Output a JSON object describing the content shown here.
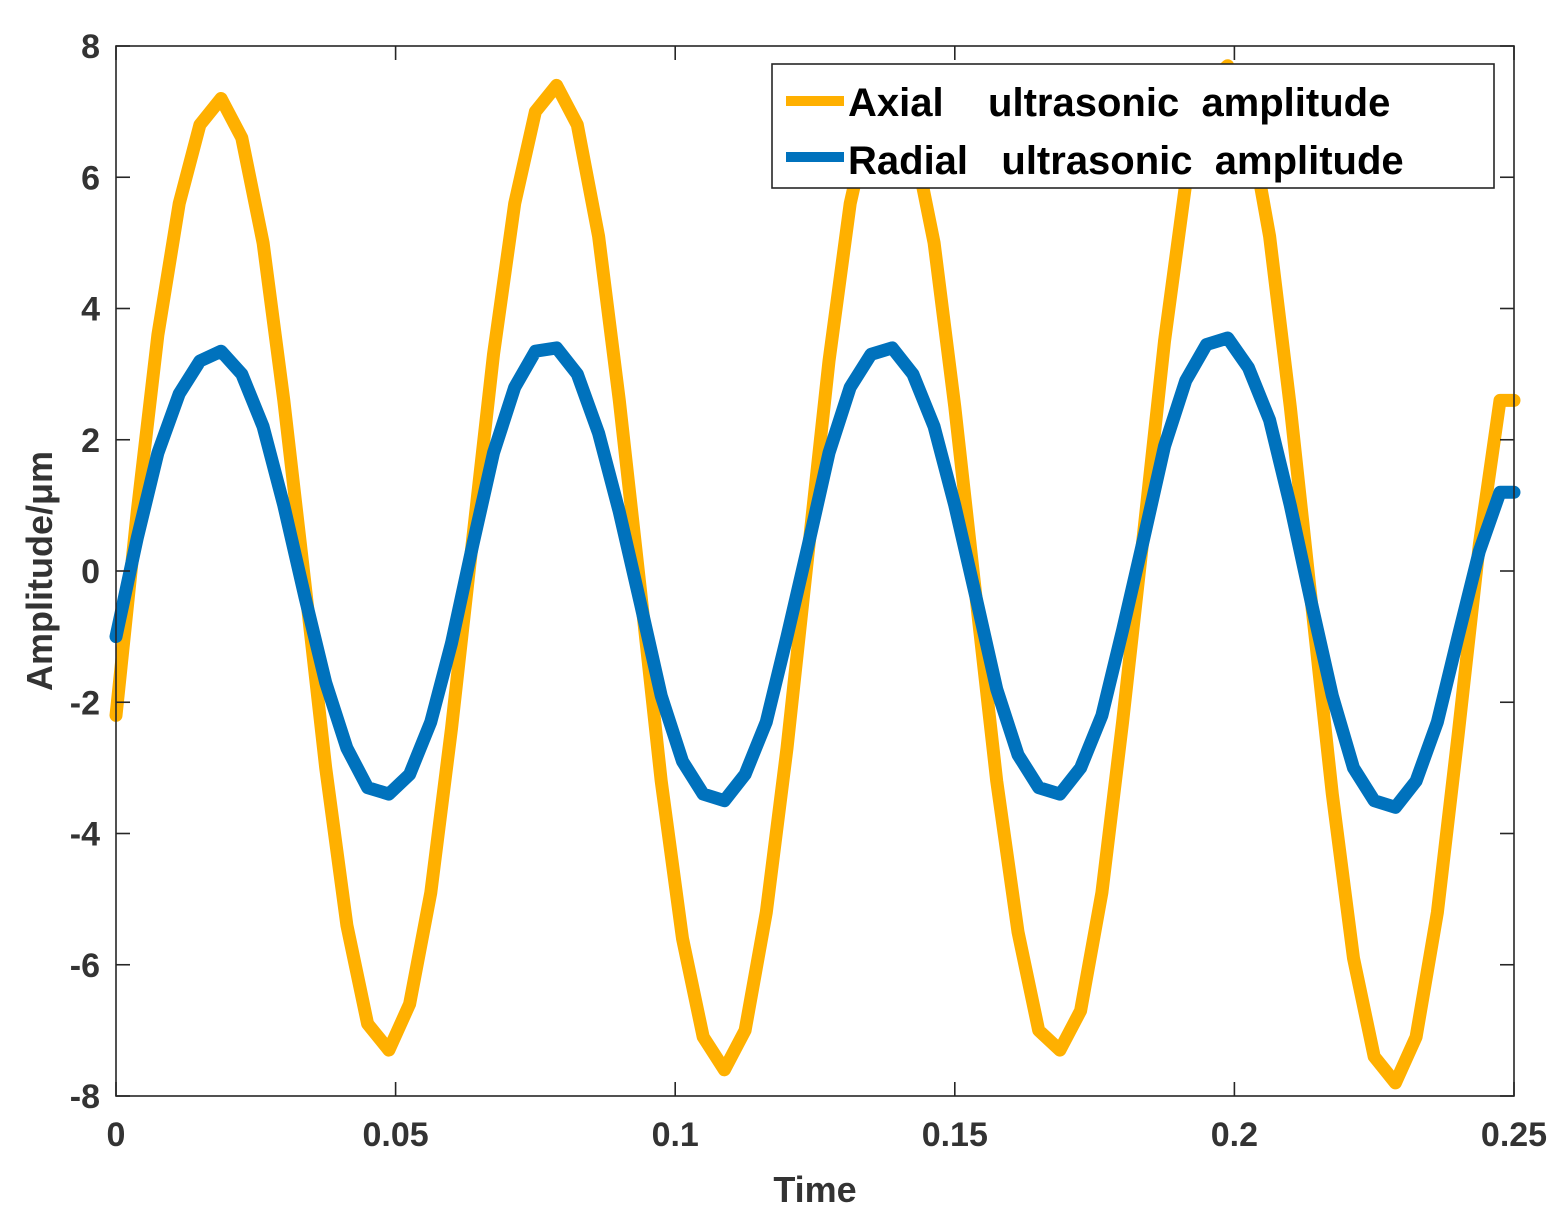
{
  "chart_data": {
    "type": "line",
    "title": "",
    "xlabel": "Time",
    "ylabel": "Amplitude/μm",
    "xlim": [
      0,
      0.25
    ],
    "ylim": [
      -8,
      8
    ],
    "xticks": [
      0,
      0.05,
      0.1,
      0.15,
      0.2,
      0.25
    ],
    "xtick_labels": [
      "0",
      "0.05",
      "0.1",
      "0.15",
      "0.2",
      "0.25"
    ],
    "yticks": [
      -8,
      -6,
      -4,
      -2,
      0,
      2,
      4,
      6,
      8
    ],
    "ytick_labels": [
      "-8",
      "-6",
      "-4",
      "-2",
      "0",
      "2",
      "4",
      "6",
      "8"
    ],
    "grid": false,
    "legend_position": "top-right",
    "series": [
      {
        "name": "Axial    ultrasonic  amplitude",
        "color": "#FFB000",
        "x": [
          0,
          0.0038,
          0.0075,
          0.0113,
          0.015,
          0.0188,
          0.0225,
          0.0263,
          0.03,
          0.0338,
          0.0375,
          0.0413,
          0.045,
          0.0488,
          0.0525,
          0.0563,
          0.06,
          0.0638,
          0.0675,
          0.0713,
          0.075,
          0.0788,
          0.0825,
          0.0863,
          0.09,
          0.0938,
          0.0975,
          0.1013,
          0.105,
          0.1088,
          0.1125,
          0.1163,
          0.12,
          0.1238,
          0.1275,
          0.1313,
          0.135,
          0.1388,
          0.1425,
          0.1463,
          0.15,
          0.1538,
          0.1575,
          0.1613,
          0.165,
          0.1688,
          0.1725,
          0.1763,
          0.18,
          0.1838,
          0.1875,
          0.1913,
          0.195,
          0.1988,
          0.2025,
          0.2063,
          0.21,
          0.2138,
          0.2175,
          0.2213,
          0.225,
          0.2288,
          0.2325,
          0.2363,
          0.24,
          0.2438,
          0.2475,
          0.25
        ],
        "y": [
          -2.2,
          0.9,
          3.6,
          5.6,
          6.8,
          7.2,
          6.6,
          5.0,
          2.6,
          -0.2,
          -3.0,
          -5.4,
          -6.9,
          -7.3,
          -6.6,
          -4.9,
          -2.4,
          0.5,
          3.3,
          5.6,
          7.0,
          7.4,
          6.8,
          5.1,
          2.6,
          -0.3,
          -3.2,
          -5.6,
          -7.1,
          -7.6,
          -7.0,
          -5.2,
          -2.7,
          0.3,
          3.2,
          5.6,
          7.0,
          7.3,
          6.6,
          5.0,
          2.5,
          -0.4,
          -3.2,
          -5.5,
          -7.0,
          -7.3,
          -6.7,
          -4.9,
          -2.3,
          0.6,
          3.5,
          5.9,
          7.4,
          7.7,
          6.9,
          5.1,
          2.5,
          -0.5,
          -3.4,
          -5.9,
          -7.4,
          -7.8,
          -7.1,
          -5.2,
          -2.5,
          0.4,
          2.6,
          2.6
        ]
      },
      {
        "name": "Radial   ultrasonic  amplitude",
        "color": "#0072BD",
        "x": [
          0,
          0.0038,
          0.0075,
          0.0113,
          0.015,
          0.0188,
          0.0225,
          0.0263,
          0.03,
          0.0338,
          0.0375,
          0.0413,
          0.045,
          0.0488,
          0.0525,
          0.0563,
          0.06,
          0.0638,
          0.0675,
          0.0713,
          0.075,
          0.0788,
          0.0825,
          0.0863,
          0.09,
          0.0938,
          0.0975,
          0.1013,
          0.105,
          0.1088,
          0.1125,
          0.1163,
          0.12,
          0.1238,
          0.1275,
          0.1313,
          0.135,
          0.1388,
          0.1425,
          0.1463,
          0.15,
          0.1538,
          0.1575,
          0.1613,
          0.165,
          0.1688,
          0.1725,
          0.1763,
          0.18,
          0.1838,
          0.1875,
          0.1913,
          0.195,
          0.1988,
          0.2025,
          0.2063,
          0.21,
          0.2138,
          0.2175,
          0.2213,
          0.225,
          0.2288,
          0.2325,
          0.2363,
          0.24,
          0.2438,
          0.2475,
          0.25
        ],
        "y": [
          -1.0,
          0.5,
          1.8,
          2.7,
          3.2,
          3.35,
          3.0,
          2.2,
          1.0,
          -0.4,
          -1.7,
          -2.7,
          -3.3,
          -3.4,
          -3.1,
          -2.3,
          -1.1,
          0.4,
          1.8,
          2.8,
          3.35,
          3.4,
          3.0,
          2.1,
          0.9,
          -0.5,
          -1.9,
          -2.9,
          -3.4,
          -3.5,
          -3.1,
          -2.3,
          -1.0,
          0.4,
          1.8,
          2.8,
          3.3,
          3.4,
          3.0,
          2.2,
          1.0,
          -0.4,
          -1.8,
          -2.8,
          -3.3,
          -3.4,
          -3.0,
          -2.2,
          -0.9,
          0.5,
          1.9,
          2.9,
          3.45,
          3.55,
          3.1,
          2.3,
          1.0,
          -0.5,
          -1.9,
          -3.0,
          -3.5,
          -3.6,
          -3.2,
          -2.3,
          -1.0,
          0.3,
          1.2,
          1.2
        ]
      }
    ]
  }
}
